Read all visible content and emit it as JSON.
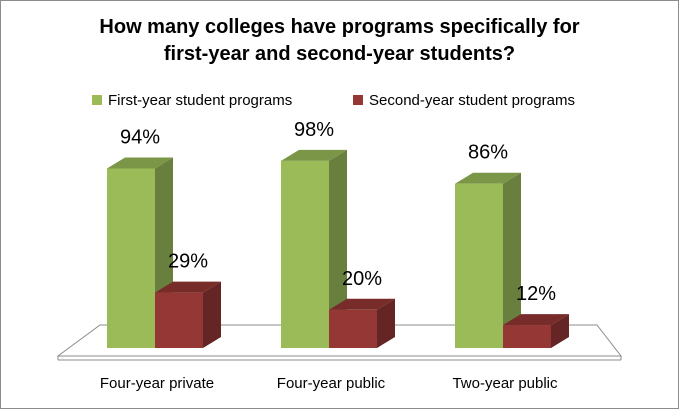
{
  "chart_data": {
    "type": "bar",
    "title_lines": [
      "How many colleges have programs specifically for",
      "first-year and second-year students?"
    ],
    "categories": [
      "Four-year private",
      "Four-year public",
      "Two-year public"
    ],
    "series": [
      {
        "name": "First-year student programs",
        "values": [
          94,
          98,
          86
        ],
        "labels": [
          "94%",
          "98%",
          "86%"
        ],
        "color": "#9bbb59"
      },
      {
        "name": "Second-year student programs",
        "values": [
          29,
          20,
          12
        ],
        "labels": [
          "29%",
          "20%",
          "12%"
        ],
        "color": "#953735"
      }
    ],
    "ylim": [
      0,
      100
    ],
    "grid": false,
    "legend_position": "top",
    "style": "3d-column"
  }
}
